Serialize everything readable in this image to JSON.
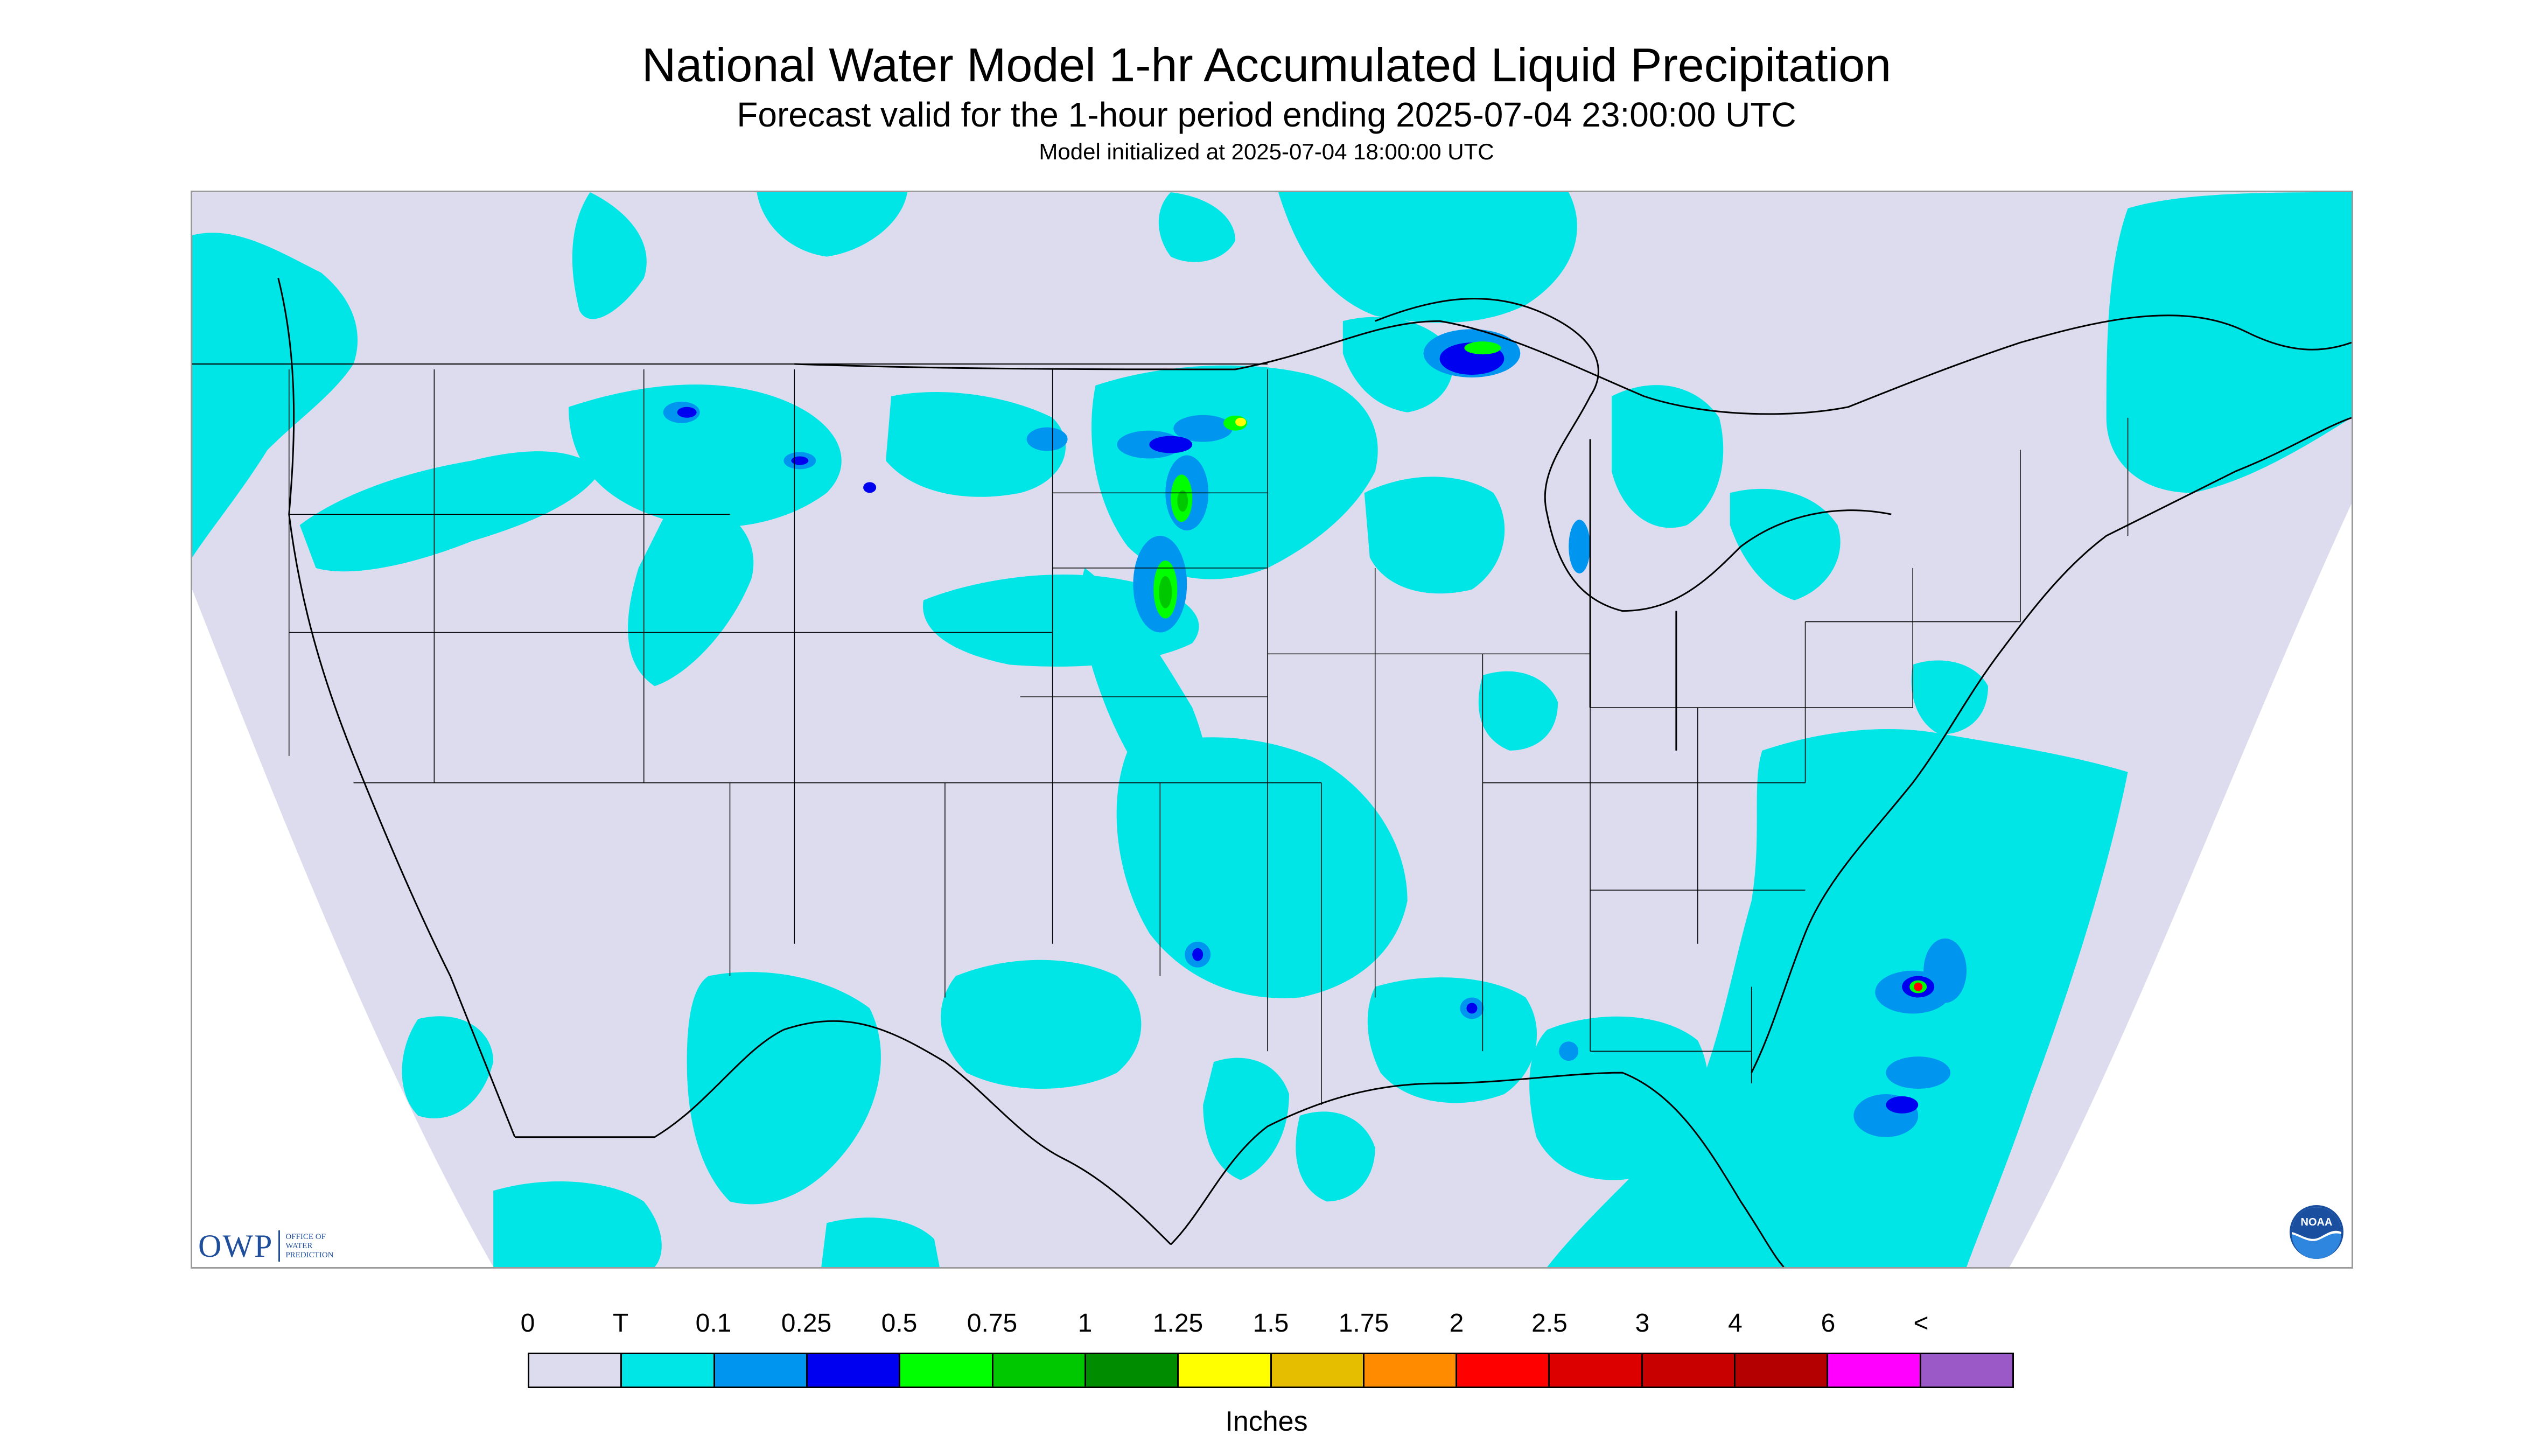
{
  "titles": {
    "main": "National Water Model 1-hr Accumulated Liquid Precipitation",
    "sub": "Forecast valid for the 1-hour period ending 2025-07-04 23:00:00 UTC",
    "init": "Model initialized at 2025-07-04 18:00:00 UTC"
  },
  "logos": {
    "owp_abbrev": "OWP",
    "owp_line1": "OFFICE OF",
    "owp_line2": "WATER",
    "owp_line3": "PREDICTION",
    "noaa": "NOAA"
  },
  "legend": {
    "tick_labels": [
      "0",
      "T",
      "0.1",
      "0.25",
      "0.5",
      "0.75",
      "1",
      "1.25",
      "1.5",
      "1.75",
      "2",
      "2.5",
      "3",
      "4",
      "6",
      "<"
    ],
    "colors": [
      "#dcdcee",
      "#00e6e6",
      "#0096f0",
      "#0000f0",
      "#00ff00",
      "#00c800",
      "#008c00",
      "#ffff00",
      "#e6be00",
      "#ff8c00",
      "#ff0000",
      "#dc0000",
      "#c80000",
      "#b40000",
      "#ff00ff",
      "#9b59c8"
    ],
    "units": "Inches"
  },
  "map": {
    "colors": {
      "background": "#dcdcee",
      "outside": "#ffffff",
      "trace": "#00e6e6",
      "light": "#0096f0",
      "moderate": "#0000f0",
      "heavy": "#00ff00",
      "heavier": "#00c800",
      "intense": "#ffff00",
      "extreme": "#ff0000",
      "borders": "#000000"
    }
  }
}
